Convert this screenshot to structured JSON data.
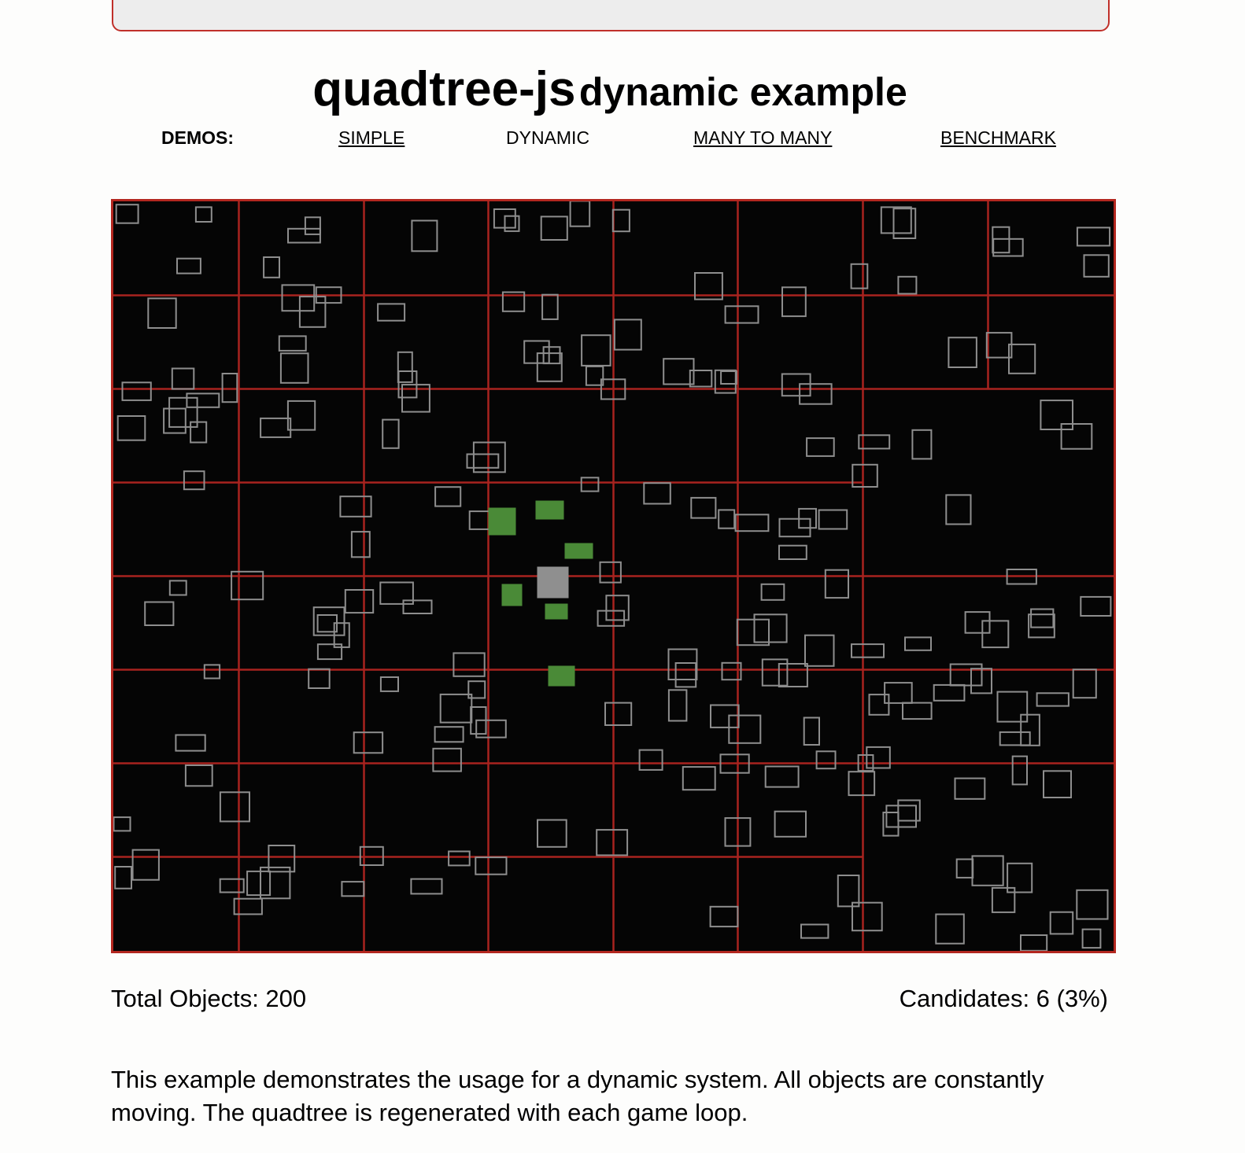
{
  "header": {
    "title": "quadtree-js",
    "subtitle": "dynamic example"
  },
  "nav": {
    "label": "DEMOS:",
    "links": [
      "SIMPLE",
      "DYNAMIC",
      "MANY TO MANY",
      "BENCHMARK"
    ]
  },
  "stats": {
    "total": "Total Objects: 200",
    "candidates": "Candidates: 6 (3%)"
  },
  "description": "This example demonstrates the usage for a dynamic system. All objects are constantly moving. The quadtree is regenerated with each game loop."
}
